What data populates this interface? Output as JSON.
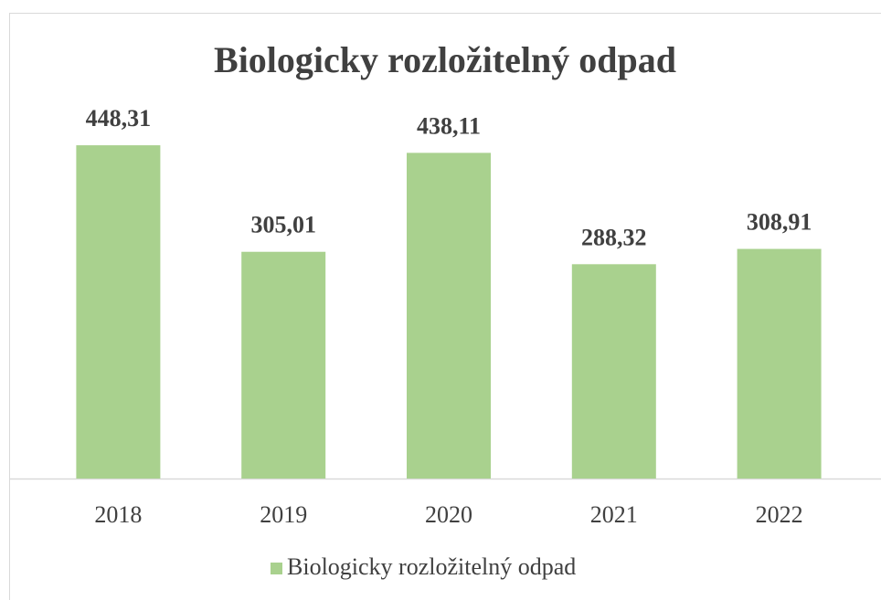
{
  "chart_data": {
    "type": "bar",
    "title": "Biologicky rozložitelný odpad",
    "categories": [
      "2018",
      "2019",
      "2020",
      "2021",
      "2022"
    ],
    "series": [
      {
        "name": "Biologicky rozložitelný odpad",
        "color": "#a9d18e",
        "values": [
          448.31,
          305.01,
          438.11,
          288.32,
          308.91
        ],
        "value_labels": [
          "448,31",
          "305,01",
          "438,11",
          "288,32",
          "308,91"
        ]
      }
    ],
    "legend": "bottom"
  }
}
